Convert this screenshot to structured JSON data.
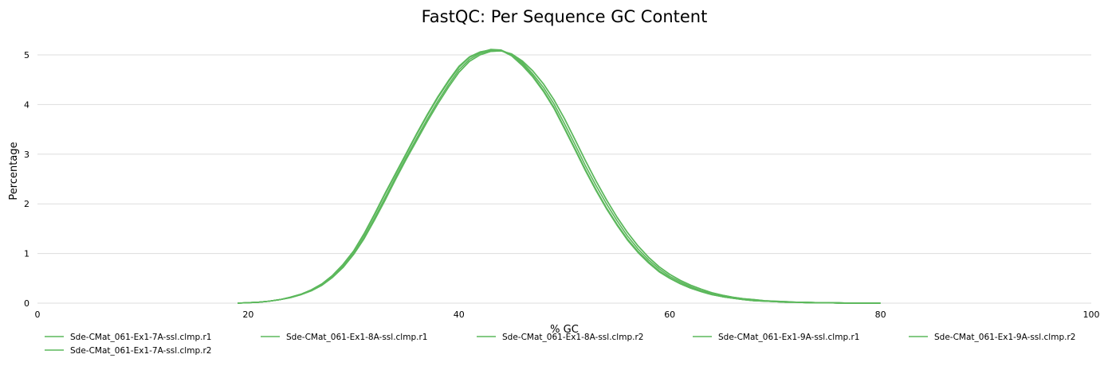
{
  "chart_data": {
    "type": "line",
    "title": "FastQC: Per Sequence GC Content",
    "xlabel": "% GC",
    "ylabel": "Percentage",
    "xlim": [
      0,
      100
    ],
    "ylim": [
      0,
      5.5
    ],
    "x_ticks": [
      0,
      20,
      40,
      60,
      80,
      100
    ],
    "y_ticks": [
      0,
      1,
      2,
      3,
      4,
      5
    ],
    "grid": "horizontal",
    "legend_position": "bottom",
    "line_color": "#5cb85c",
    "series": [
      {
        "name": "Sde-CMat_061-Ex1-7A-ssl.clmp.r1",
        "x": [
          19,
          20,
          21,
          22,
          23,
          24,
          25,
          26,
          27,
          28,
          29,
          30,
          31,
          32,
          33,
          34,
          35,
          36,
          37,
          38,
          39,
          40,
          41,
          42,
          43,
          44,
          45,
          46,
          47,
          48,
          49,
          50,
          51,
          52,
          53,
          54,
          55,
          56,
          57,
          58,
          59,
          60,
          61,
          62,
          63,
          64,
          65,
          66,
          67,
          68,
          69,
          70,
          71,
          72,
          73,
          74,
          75,
          76,
          77,
          78,
          79,
          80
        ],
        "y": [
          0.0,
          0.01,
          0.02,
          0.04,
          0.07,
          0.12,
          0.18,
          0.27,
          0.39,
          0.56,
          0.78,
          1.05,
          1.4,
          1.8,
          2.22,
          2.62,
          3.02,
          3.42,
          3.8,
          4.16,
          4.48,
          4.77,
          4.96,
          5.06,
          5.1,
          5.09,
          4.98,
          4.79,
          4.56,
          4.27,
          3.93,
          3.52,
          3.1,
          2.67,
          2.27,
          1.9,
          1.57,
          1.27,
          1.02,
          0.81,
          0.63,
          0.5,
          0.39,
          0.3,
          0.23,
          0.17,
          0.13,
          0.1,
          0.07,
          0.05,
          0.04,
          0.03,
          0.02,
          0.02,
          0.01,
          0.01,
          0.01,
          0.0,
          0.0,
          0.0,
          0.0,
          0.0
        ]
      },
      {
        "name": "Sde-CMat_061-Ex1-8A-ssl.clmp.r1",
        "x": [
          19,
          20,
          21,
          22,
          23,
          24,
          25,
          26,
          27,
          28,
          29,
          30,
          31,
          32,
          33,
          34,
          35,
          36,
          37,
          38,
          39,
          40,
          41,
          42,
          43,
          44,
          45,
          46,
          47,
          48,
          49,
          50,
          51,
          52,
          53,
          54,
          55,
          56,
          57,
          58,
          59,
          60,
          61,
          62,
          63,
          64,
          65,
          66,
          67,
          68,
          69,
          70,
          71,
          72,
          73,
          74,
          75,
          76,
          77,
          78,
          79,
          80
        ],
        "y": [
          0.0,
          0.01,
          0.02,
          0.04,
          0.07,
          0.12,
          0.18,
          0.27,
          0.39,
          0.56,
          0.78,
          1.05,
          1.4,
          1.8,
          2.22,
          2.62,
          3.02,
          3.42,
          3.8,
          4.16,
          4.48,
          4.77,
          4.96,
          5.06,
          5.1,
          5.09,
          4.98,
          4.79,
          4.56,
          4.27,
          3.93,
          3.52,
          3.1,
          2.67,
          2.27,
          1.9,
          1.57,
          1.27,
          1.02,
          0.81,
          0.63,
          0.5,
          0.39,
          0.3,
          0.23,
          0.17,
          0.13,
          0.1,
          0.07,
          0.05,
          0.04,
          0.03,
          0.02,
          0.02,
          0.01,
          0.01,
          0.01,
          0.0,
          0.0,
          0.0,
          0.0,
          0.0
        ]
      },
      {
        "name": "Sde-CMat_061-Ex1-8A-ssl.clmp.r2",
        "x": [
          19,
          20,
          21,
          22,
          23,
          24,
          25,
          26,
          27,
          28,
          29,
          30,
          31,
          32,
          33,
          34,
          35,
          36,
          37,
          38,
          39,
          40,
          41,
          42,
          43,
          44,
          45,
          46,
          47,
          48,
          49,
          50,
          51,
          52,
          53,
          54,
          55,
          56,
          57,
          58,
          59,
          60,
          61,
          62,
          63,
          64,
          65,
          66,
          67,
          68,
          69,
          70,
          71,
          72,
          73,
          74,
          75,
          76,
          77,
          78,
          79,
          80
        ],
        "y": [
          0.0,
          0.01,
          0.02,
          0.04,
          0.07,
          0.11,
          0.17,
          0.25,
          0.36,
          0.52,
          0.72,
          0.98,
          1.3,
          1.68,
          2.08,
          2.5,
          2.9,
          3.28,
          3.66,
          4.02,
          4.35,
          4.65,
          4.87,
          5.0,
          5.07,
          5.08,
          5.02,
          4.88,
          4.68,
          4.42,
          4.1,
          3.72,
          3.3,
          2.87,
          2.46,
          2.08,
          1.73,
          1.42,
          1.15,
          0.92,
          0.73,
          0.58,
          0.46,
          0.36,
          0.28,
          0.21,
          0.16,
          0.12,
          0.09,
          0.07,
          0.05,
          0.04,
          0.03,
          0.02,
          0.02,
          0.01,
          0.01,
          0.01,
          0.0,
          0.0,
          0.0,
          0.0
        ]
      },
      {
        "name": "Sde-CMat_061-Ex1-9A-ssl.clmp.r1",
        "x": [
          19,
          20,
          21,
          22,
          23,
          24,
          25,
          26,
          27,
          28,
          29,
          30,
          31,
          32,
          33,
          34,
          35,
          36,
          37,
          38,
          39,
          40,
          41,
          42,
          43,
          44,
          45,
          46,
          47,
          48,
          49,
          50,
          51,
          52,
          53,
          54,
          55,
          56,
          57,
          58,
          59,
          60,
          61,
          62,
          63,
          64,
          65,
          66,
          67,
          68,
          69,
          70,
          71,
          72,
          73,
          74,
          75,
          76,
          77,
          78,
          79,
          80
        ],
        "y": [
          0.0,
          0.01,
          0.02,
          0.04,
          0.07,
          0.12,
          0.18,
          0.26,
          0.38,
          0.55,
          0.77,
          1.04,
          1.38,
          1.78,
          2.2,
          2.6,
          3.0,
          3.4,
          3.78,
          4.14,
          4.46,
          4.75,
          4.95,
          5.05,
          5.11,
          5.1,
          5.0,
          4.82,
          4.58,
          4.29,
          3.95,
          3.54,
          3.12,
          2.69,
          2.29,
          1.92,
          1.59,
          1.29,
          1.04,
          0.83,
          0.65,
          0.51,
          0.4,
          0.31,
          0.24,
          0.18,
          0.13,
          0.1,
          0.07,
          0.05,
          0.04,
          0.03,
          0.02,
          0.02,
          0.01,
          0.01,
          0.01,
          0.0,
          0.0,
          0.0,
          0.0,
          0.0
        ]
      },
      {
        "name": "Sde-CMat_061-Ex1-9A-ssl.clmp.r2",
        "x": [
          19,
          20,
          21,
          22,
          23,
          24,
          25,
          26,
          27,
          28,
          29,
          30,
          31,
          32,
          33,
          34,
          35,
          36,
          37,
          38,
          39,
          40,
          41,
          42,
          43,
          44,
          45,
          46,
          47,
          48,
          49,
          50,
          51,
          52,
          53,
          54,
          55,
          56,
          57,
          58,
          59,
          60,
          61,
          62,
          63,
          64,
          65,
          66,
          67,
          68,
          69,
          70,
          71,
          72,
          73,
          74,
          75,
          76,
          77,
          78,
          79,
          80
        ],
        "y": [
          0.0,
          0.01,
          0.02,
          0.04,
          0.07,
          0.11,
          0.17,
          0.25,
          0.36,
          0.52,
          0.72,
          0.98,
          1.3,
          1.68,
          2.08,
          2.5,
          2.9,
          3.28,
          3.66,
          4.02,
          4.35,
          4.65,
          4.87,
          5.0,
          5.07,
          5.08,
          5.02,
          4.88,
          4.68,
          4.42,
          4.1,
          3.72,
          3.3,
          2.87,
          2.46,
          2.08,
          1.73,
          1.42,
          1.15,
          0.92,
          0.73,
          0.58,
          0.46,
          0.36,
          0.28,
          0.21,
          0.16,
          0.12,
          0.09,
          0.07,
          0.05,
          0.04,
          0.03,
          0.02,
          0.02,
          0.01,
          0.01,
          0.01,
          0.0,
          0.0,
          0.0,
          0.0
        ]
      },
      {
        "name": "Sde-CMat_061-Ex1-7A-ssl.clmp.r2",
        "x": [
          19,
          20,
          21,
          22,
          23,
          24,
          25,
          26,
          27,
          28,
          29,
          30,
          31,
          32,
          33,
          34,
          35,
          36,
          37,
          38,
          39,
          40,
          41,
          42,
          43,
          44,
          45,
          46,
          47,
          48,
          49,
          50,
          51,
          52,
          53,
          54,
          55,
          56,
          57,
          58,
          59,
          60,
          61,
          62,
          63,
          64,
          65,
          66,
          67,
          68,
          69,
          70,
          71,
          72,
          73,
          74,
          75,
          76,
          77,
          78,
          79,
          80
        ],
        "y": [
          0.0,
          0.01,
          0.02,
          0.04,
          0.07,
          0.11,
          0.17,
          0.25,
          0.37,
          0.53,
          0.74,
          1.0,
          1.33,
          1.72,
          2.13,
          2.54,
          2.94,
          3.33,
          3.71,
          4.07,
          4.4,
          4.7,
          4.91,
          5.03,
          5.09,
          5.09,
          5.01,
          4.85,
          4.62,
          4.35,
          4.02,
          3.62,
          3.2,
          2.77,
          2.37,
          2.0,
          1.66,
          1.35,
          1.09,
          0.87,
          0.69,
          0.54,
          0.43,
          0.33,
          0.25,
          0.19,
          0.15,
          0.11,
          0.08,
          0.06,
          0.04,
          0.03,
          0.02,
          0.02,
          0.01,
          0.01,
          0.01,
          0.0,
          0.0,
          0.0,
          0.0,
          0.0
        ]
      }
    ]
  }
}
